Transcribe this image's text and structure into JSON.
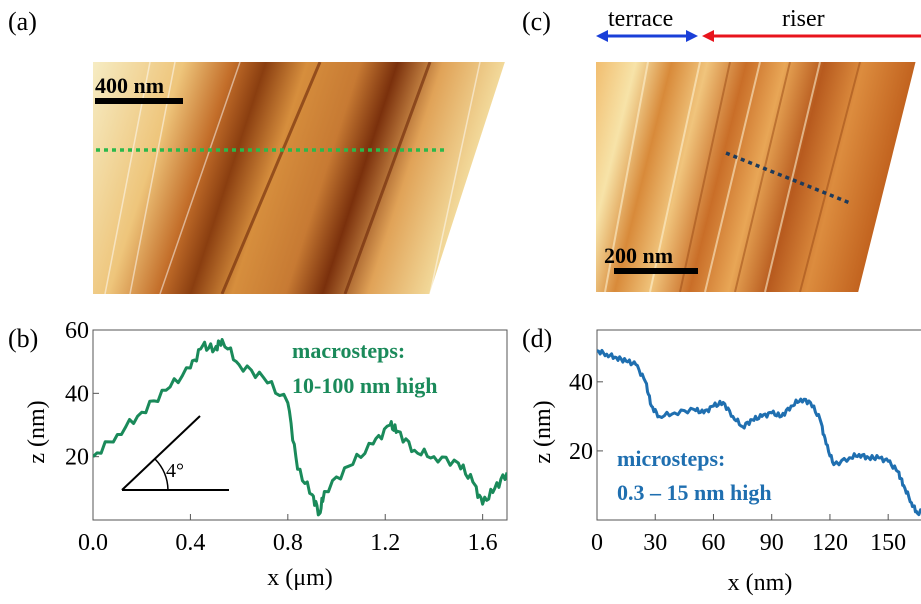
{
  "panels": {
    "a": {
      "label": "(a)",
      "scalebar": "400 nm"
    },
    "b": {
      "label": "(b)"
    },
    "c": {
      "label": "(c)",
      "scalebar": "200 nm",
      "terrace_label": "terrace",
      "riser_label": "riser"
    },
    "d": {
      "label": "(d)"
    }
  },
  "colors": {
    "green": "#1a8a5a",
    "blue": "#1f6fb0",
    "terrace_arrow": "#1a3fd8",
    "riser_arrow": "#e8141c",
    "green_dots": "#2bb84a",
    "navy_dots": "#1d3a5a"
  },
  "chart_data": [
    {
      "type": "line",
      "panel": "b",
      "xlabel": "x (μm)",
      "ylabel": "z (nm)",
      "xlim": [
        0.0,
        1.7
      ],
      "ylim": [
        0,
        60
      ],
      "xticks": [
        "0.0",
        "0.4",
        "0.8",
        "1.2",
        "1.6"
      ],
      "xtick_values": [
        0.0,
        0.4,
        0.8,
        1.2,
        1.6
      ],
      "yticks": [
        "20",
        "40",
        "60"
      ],
      "ytick_values": [
        20,
        40,
        60
      ],
      "annotation": "macrosteps:\n10-100 nm high",
      "angle_label": "4°",
      "series": [
        {
          "x": [
            0.0,
            0.1,
            0.2,
            0.3,
            0.4,
            0.45,
            0.5,
            0.53,
            0.6,
            0.7,
            0.8,
            0.84,
            0.9,
            0.93,
            0.95,
            1.05,
            1.15,
            1.22,
            1.25,
            1.32,
            1.4,
            1.5,
            1.56,
            1.6,
            1.65,
            1.7
          ],
          "y": [
            20,
            27,
            34,
            41,
            48,
            55,
            54,
            57,
            49,
            45,
            37,
            16,
            8,
            2,
            9,
            17,
            24,
            30,
            28,
            22,
            20,
            18,
            12,
            5,
            10,
            15
          ]
        }
      ]
    },
    {
      "type": "line",
      "panel": "d",
      "xlabel": "x (nm)",
      "ylabel": "z (nm)",
      "xlim": [
        0,
        170
      ],
      "ylim": [
        0,
        55
      ],
      "xticks": [
        "0",
        "30",
        "60",
        "90",
        "120",
        "150"
      ],
      "xtick_values": [
        0,
        30,
        60,
        90,
        120,
        150
      ],
      "yticks": [
        "20",
        "40"
      ],
      "ytick_values": [
        20,
        40
      ],
      "annotation": "microsteps:\n0.3 – 15 nm high",
      "series": [
        {
          "x": [
            0,
            5,
            10,
            15,
            20,
            25,
            28,
            32,
            40,
            50,
            55,
            60,
            65,
            70,
            75,
            80,
            85,
            90,
            95,
            100,
            105,
            110,
            115,
            118,
            122,
            130,
            135,
            140,
            145,
            150,
            155,
            158,
            162,
            165,
            170
          ],
          "y": [
            49,
            48,
            47,
            46,
            45,
            40,
            33,
            30,
            31,
            32,
            31,
            33,
            34,
            30,
            27,
            29,
            30,
            31,
            30,
            33,
            35,
            34,
            29,
            22,
            16,
            18,
            19,
            18,
            18,
            17,
            14,
            10,
            5,
            2,
            3
          ]
        }
      ]
    }
  ]
}
